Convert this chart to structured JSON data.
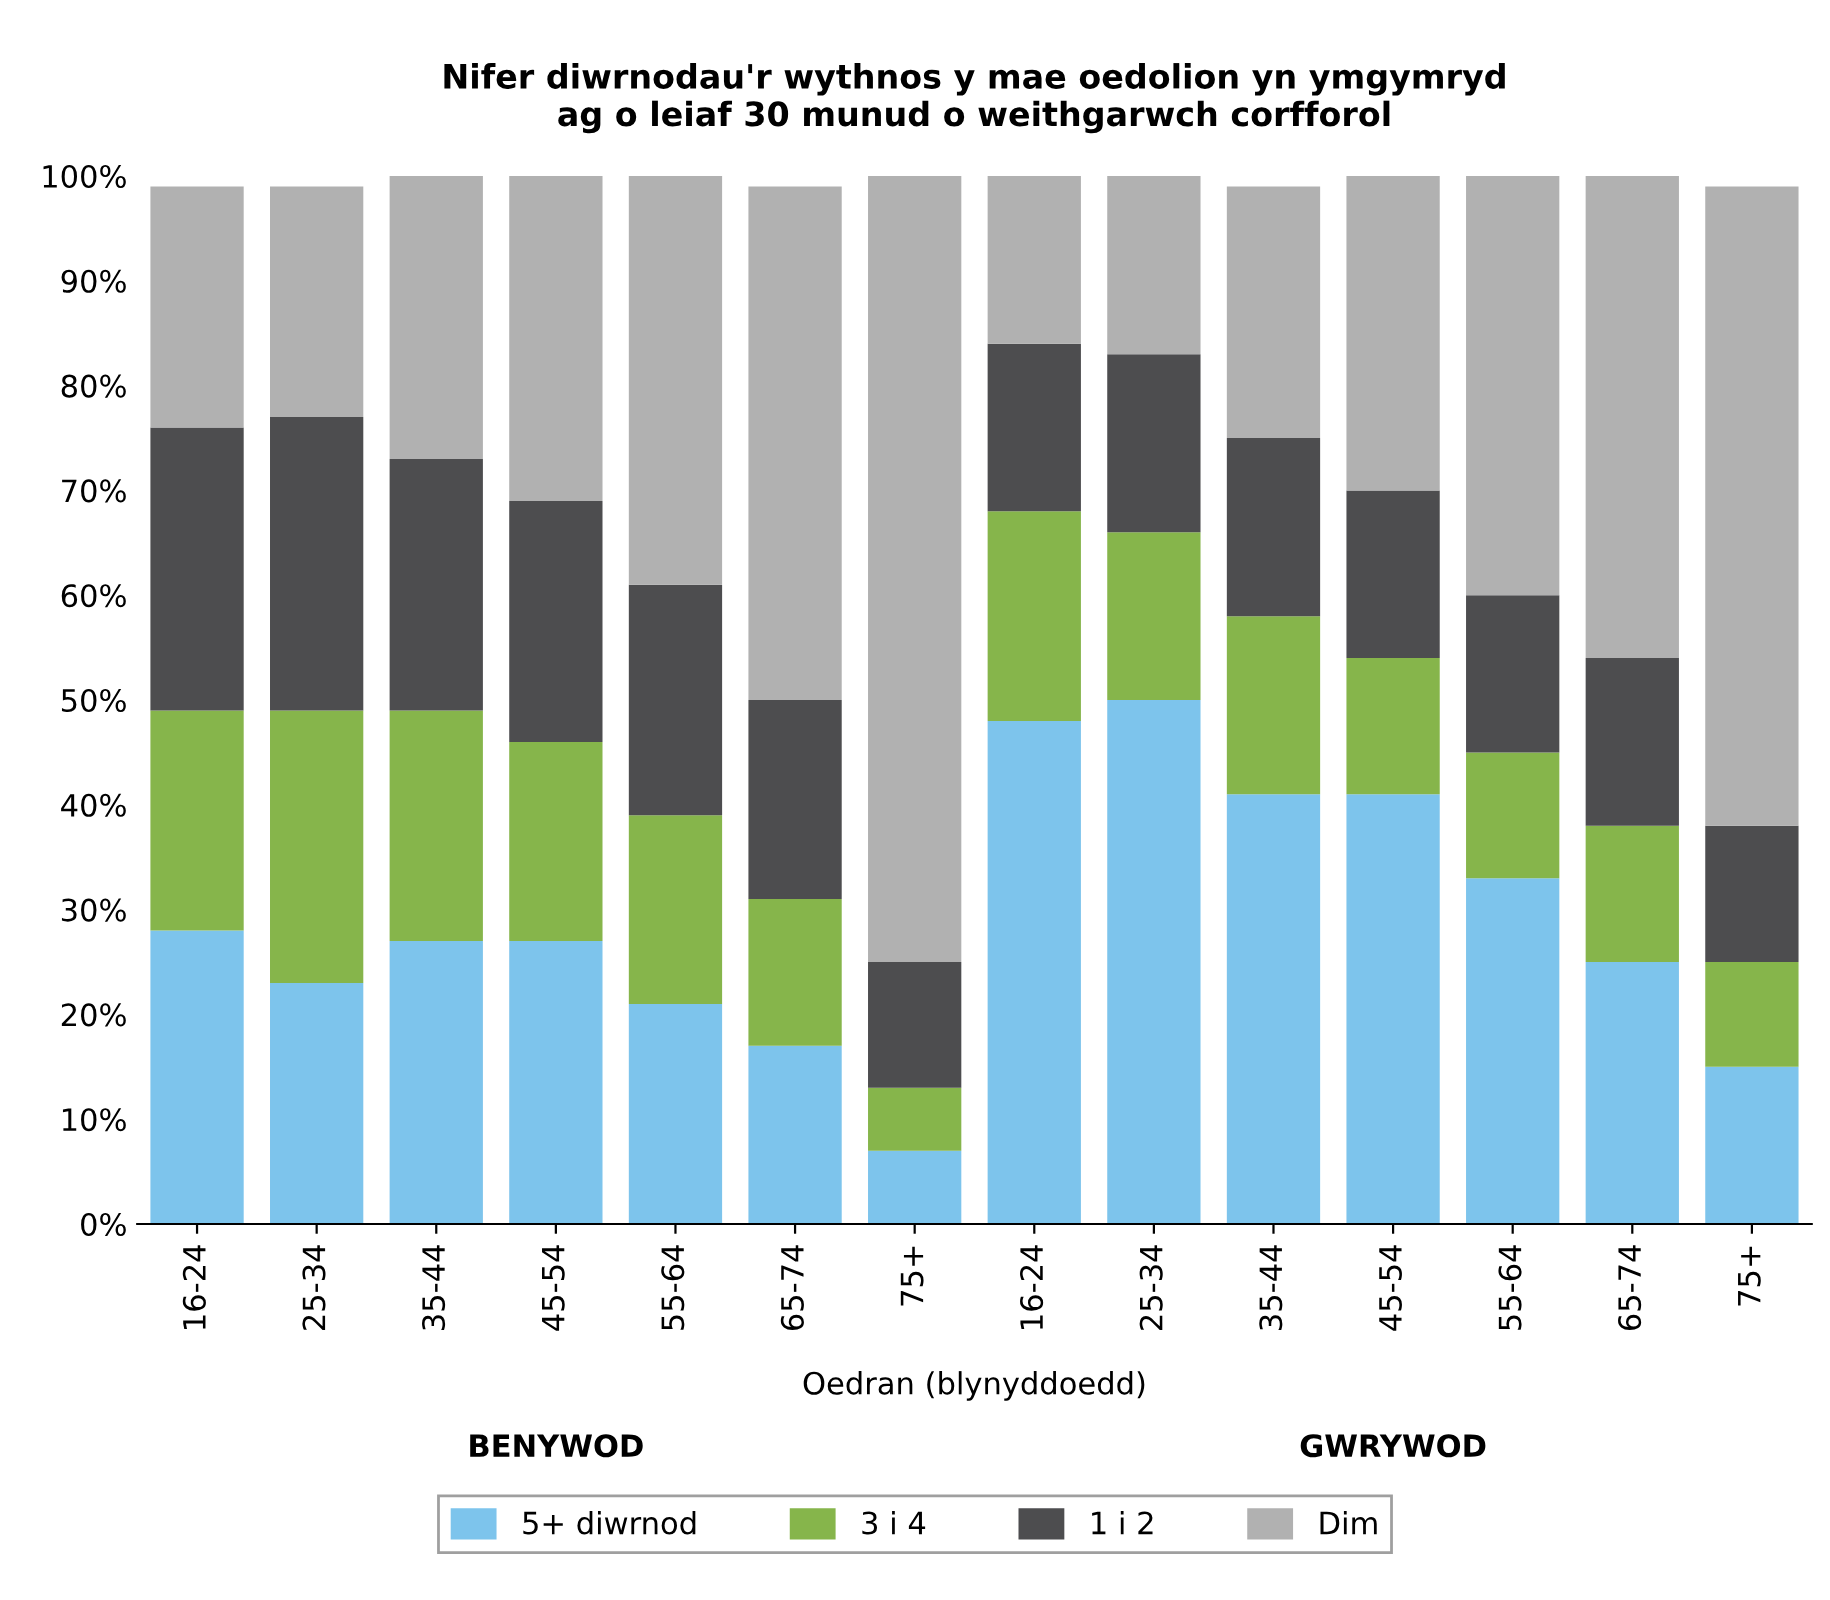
{
  "chart_data": {
    "type": "bar",
    "stacked": true,
    "title": "Nifer diwrnodau'r wythnos y mae oedolion yn ymgymryd\nag o leiaf 30 munud o weithgarwch corfforol",
    "xlabel": "Oedran (blynyddoedd)",
    "annotations": [
      "BENYWOD",
      "GWRYWOD"
    ],
    "categories": [
      "16-24",
      "25-34",
      "35-44",
      "45-54",
      "55-64",
      "65-74",
      "75+",
      "16-24",
      "25-34",
      "35-44",
      "45-54",
      "55-64",
      "65-74",
      "75+"
    ],
    "series": [
      {
        "name": "5+ diwrnod",
        "color": "#7dc4ec",
        "values": [
          28,
          23,
          27,
          27,
          21,
          17,
          7,
          48,
          50,
          41,
          41,
          33,
          25,
          15
        ]
      },
      {
        "name": "3 i 4",
        "color": "#86b54b",
        "values": [
          21,
          26,
          22,
          19,
          18,
          14,
          6,
          20,
          16,
          17,
          13,
          12,
          13,
          10
        ]
      },
      {
        "name": "1 i 2",
        "color": "#4d4d4f",
        "values": [
          27,
          28,
          24,
          23,
          22,
          19,
          12,
          16,
          17,
          17,
          16,
          15,
          16,
          13
        ]
      },
      {
        "name": "Dim",
        "color": "#b1b1b1",
        "values": [
          23,
          22,
          27,
          31,
          39,
          49,
          75,
          16,
          17,
          24,
          30,
          40,
          46,
          61
        ]
      }
    ],
    "ylim": [
      0,
      100
    ],
    "yticks": [
      {
        "value": 0,
        "label": "0%"
      },
      {
        "value": 10,
        "label": "10%"
      },
      {
        "value": 20,
        "label": "20%"
      },
      {
        "value": 30,
        "label": "30%"
      },
      {
        "value": 40,
        "label": "40%"
      },
      {
        "value": 50,
        "label": "50%"
      },
      {
        "value": 60,
        "label": "60%"
      },
      {
        "value": 70,
        "label": "70%"
      },
      {
        "value": 80,
        "label": "80%"
      },
      {
        "value": 90,
        "label": "90%"
      },
      {
        "value": 100,
        "label": "100%"
      }
    ],
    "grid": false,
    "legend": "bottom"
  }
}
